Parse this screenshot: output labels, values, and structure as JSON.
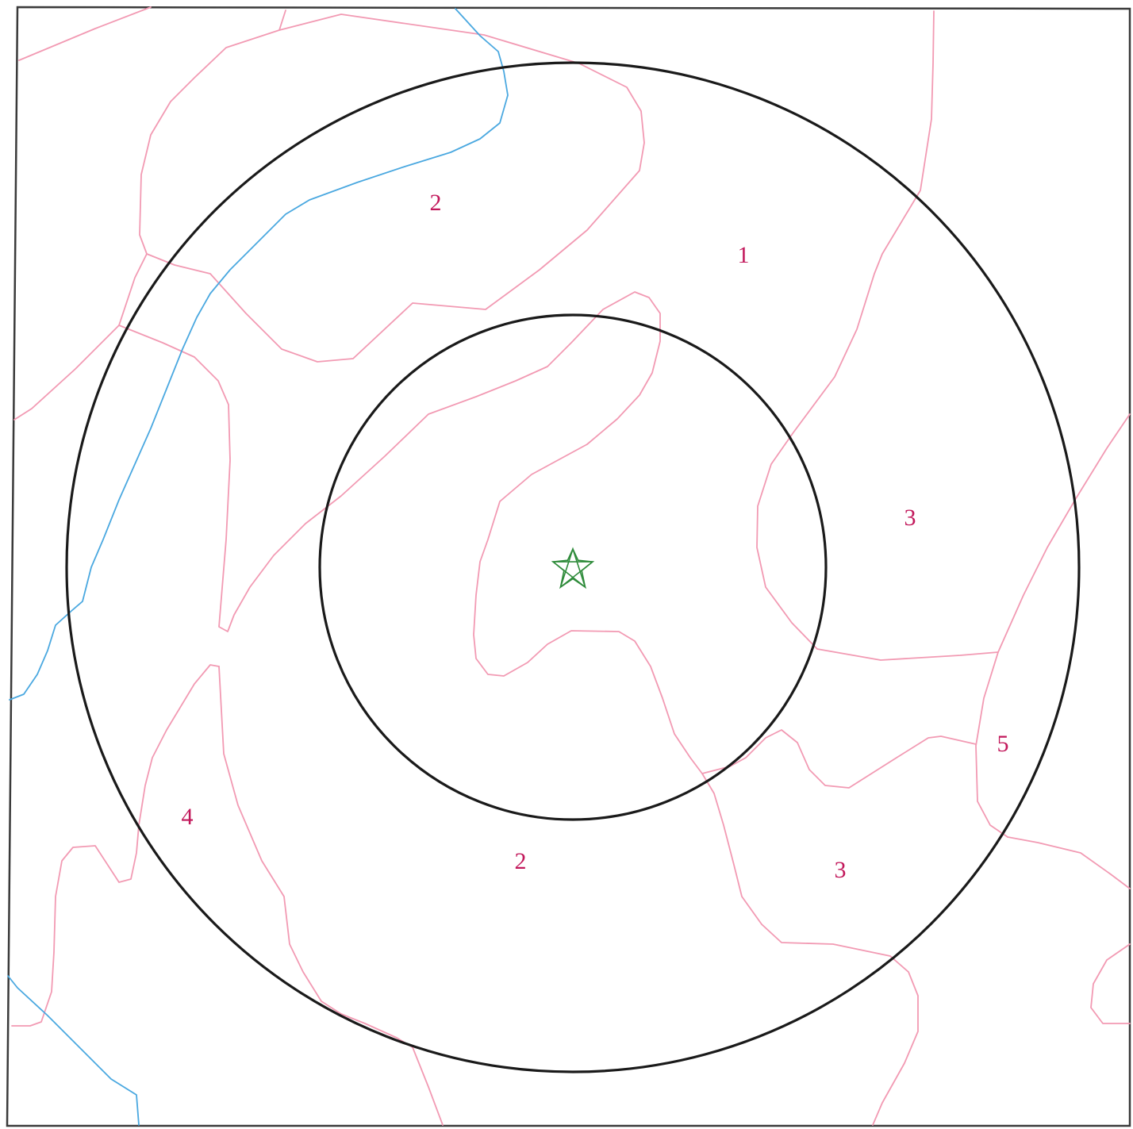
{
  "colors": {
    "zone_boundary": "#f29ab3",
    "waterway": "#4aa8e0",
    "ring": "#1a1a1a",
    "label": "#c2185b",
    "center_marker": "#2e8b3a",
    "frame": "#3a3a3a"
  },
  "center_marker": {
    "icon": "star-icon"
  },
  "zone_labels": [
    {
      "id": "label-2-north",
      "text": "2"
    },
    {
      "id": "label-1",
      "text": "1"
    },
    {
      "id": "label-3-east",
      "text": "3"
    },
    {
      "id": "label-5",
      "text": "5"
    },
    {
      "id": "label-4",
      "text": "4"
    },
    {
      "id": "label-2-south",
      "text": "2"
    },
    {
      "id": "label-3-south",
      "text": "3"
    }
  ]
}
